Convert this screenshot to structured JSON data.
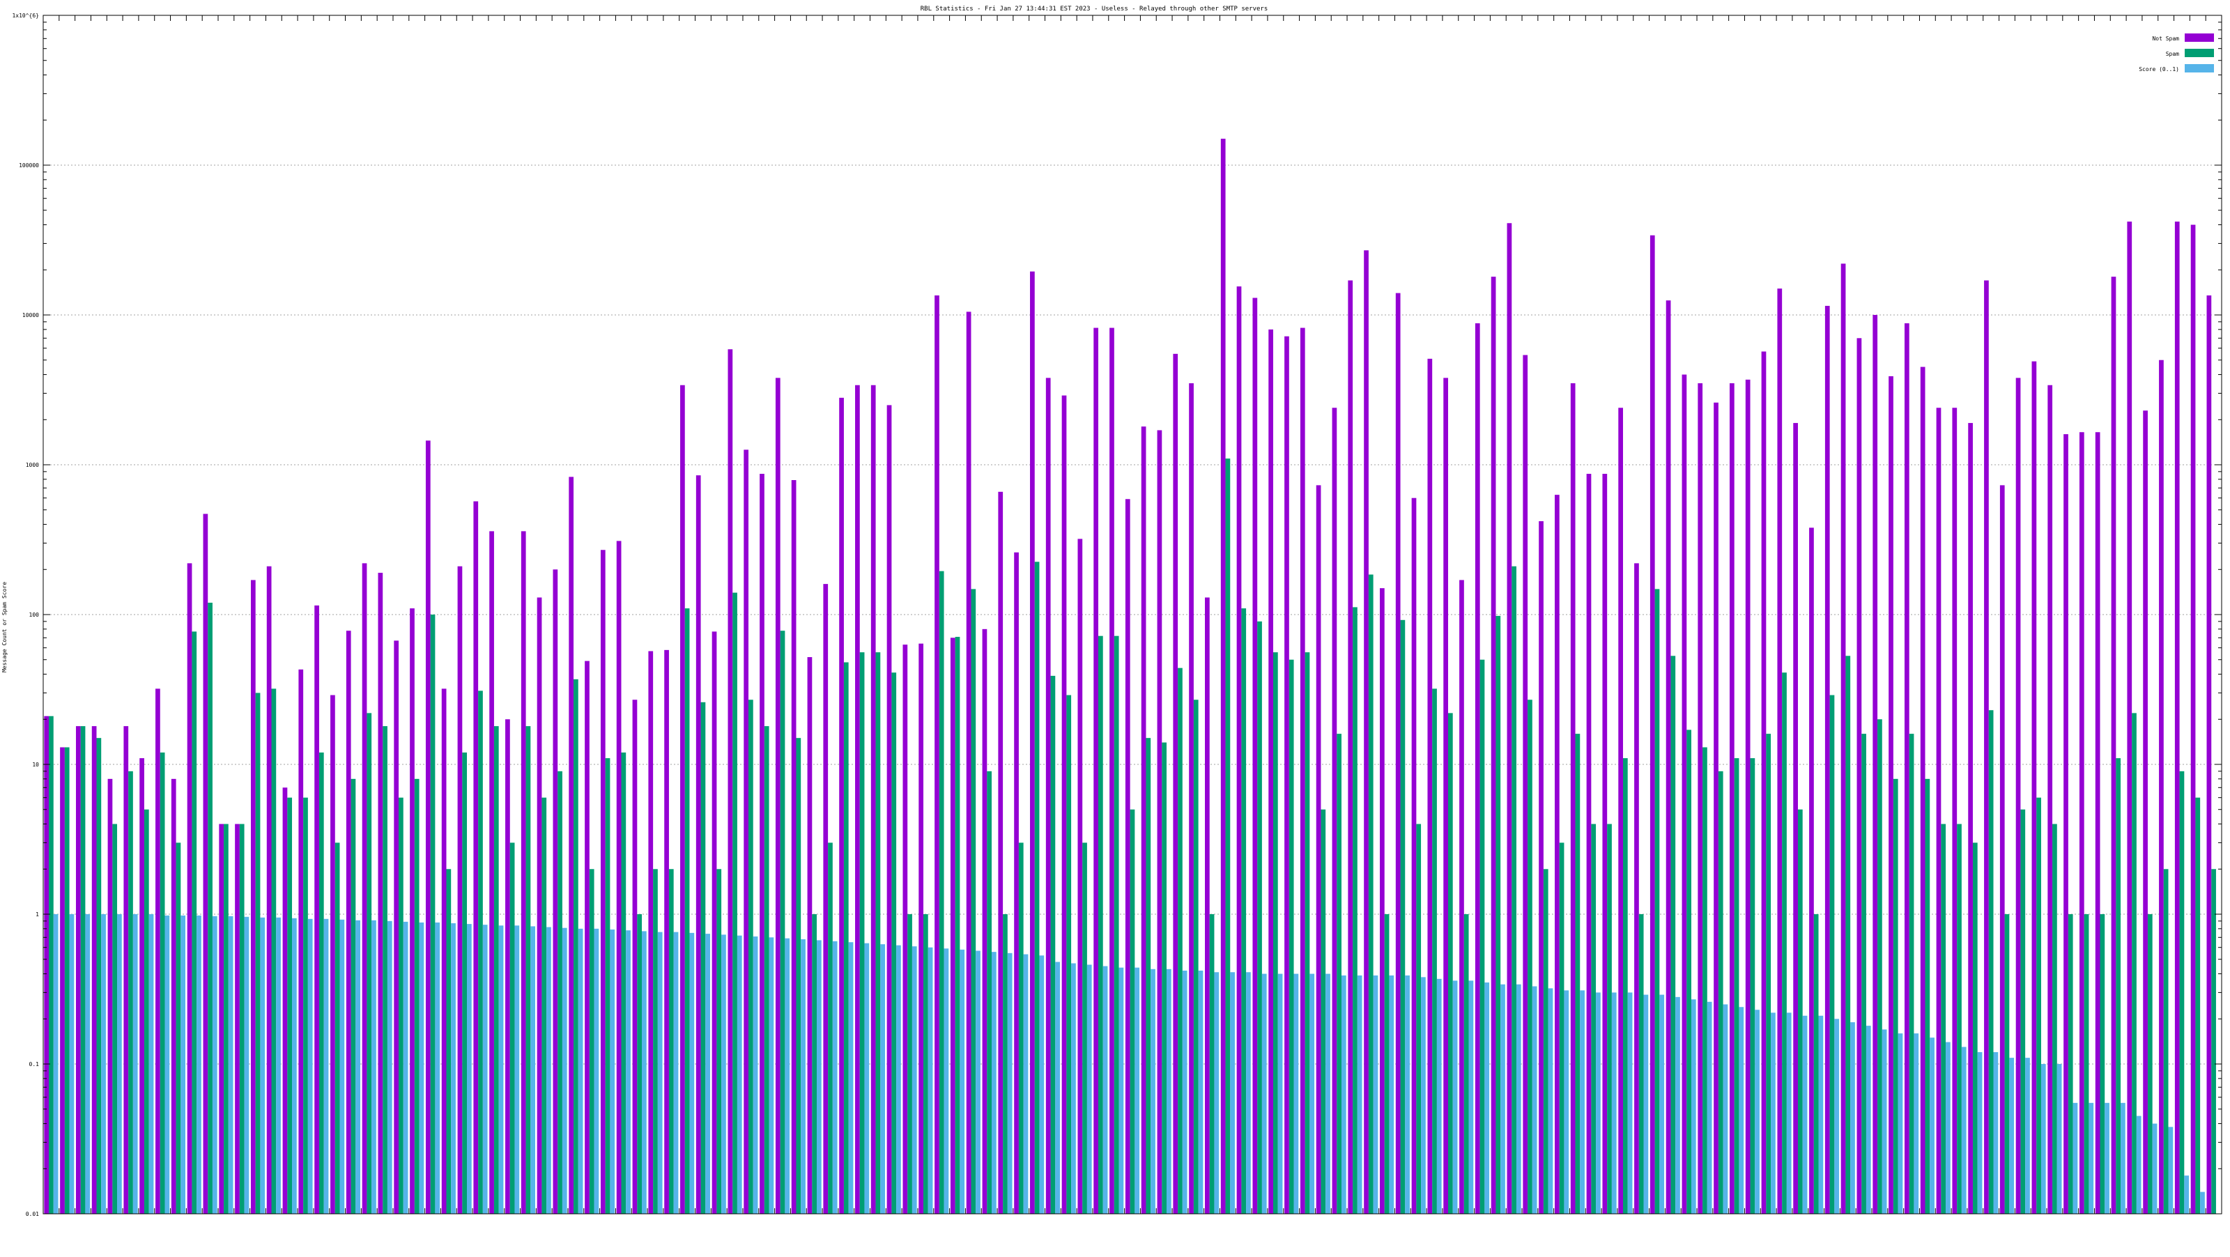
{
  "chart_data": {
    "type": "bar",
    "title": "RBL Statistics - Fri Jan 27 13:44:31 EST 2023 - Useless - Relayed through other SMTP servers",
    "ylabel": "Message Count or Spam Score",
    "xlabel": "",
    "yscale": "log",
    "ylim": [
      0.01,
      1000000
    ],
    "ytick_labels": [
      "0.01",
      "0.1",
      "1",
      "10",
      "100",
      "1000",
      "10000",
      "100000",
      "1x10^{6}"
    ],
    "grid": true,
    "legend_position": "top-right",
    "series": [
      {
        "name": "Not Spam",
        "color": "#9400d3",
        "values": [
          21,
          13,
          18,
          18,
          8,
          18,
          11,
          32,
          8,
          220,
          470,
          4,
          4,
          170,
          210,
          7,
          43,
          115,
          29,
          78,
          220,
          190,
          67,
          110,
          1450,
          32,
          210,
          570,
          360,
          20,
          360,
          130,
          200,
          830,
          49,
          270,
          310,
          27,
          57,
          58,
          3400,
          850,
          77,
          5900,
          1260,
          870,
          3800,
          790,
          52,
          160,
          2800,
          3400,
          3400,
          2500,
          63,
          64,
          13500,
          70,
          10500,
          80,
          660,
          260,
          19500,
          3800,
          2900,
          320,
          8200,
          8200,
          590,
          1800,
          1700,
          5500,
          3500,
          130,
          150000,
          15500,
          13000,
          8000,
          7200,
          8200,
          730,
          2400,
          17000,
          27000,
          150,
          14000,
          600,
          5100,
          3800,
          170,
          8800,
          18000,
          41000,
          5400,
          420,
          630,
          3500,
          870,
          870,
          2400,
          220,
          34000,
          12500,
          4000,
          3500,
          2600,
          3500,
          3700,
          5700,
          15000,
          1900,
          380,
          11500,
          22000,
          7000,
          10000,
          3900,
          8800,
          4500,
          2400,
          2400,
          1900,
          17000,
          730,
          3800,
          4900,
          3400,
          1600,
          1650,
          1650,
          18000,
          42000,
          2300,
          5000,
          42000,
          40000,
          13500
        ]
      },
      {
        "name": "Spam",
        "color": "#009e73",
        "values": [
          21,
          13,
          18,
          15,
          4,
          9,
          5,
          12,
          3,
          77,
          120,
          4,
          4,
          30,
          32,
          6,
          6,
          12,
          3,
          8,
          22,
          18,
          6,
          8,
          100,
          2,
          12,
          31,
          18,
          3,
          18,
          6,
          9,
          37,
          2,
          11,
          12,
          1,
          2,
          2,
          110,
          26,
          2,
          140,
          27,
          18,
          78,
          15,
          1,
          3,
          48,
          56,
          56,
          41,
          1,
          1,
          195,
          71,
          148,
          9,
          1,
          3,
          225,
          39,
          29,
          3,
          72,
          72,
          5,
          15,
          14,
          44,
          27,
          1,
          1100,
          110,
          90,
          56,
          50,
          56,
          5,
          16,
          112,
          185,
          1,
          92,
          4,
          32,
          22,
          1,
          50,
          98,
          210,
          27,
          2,
          3,
          16,
          4,
          4,
          11,
          1,
          148,
          53,
          17,
          13,
          9,
          11,
          11,
          16,
          41,
          5,
          1,
          29,
          53,
          16,
          20,
          8,
          16,
          8,
          4,
          4,
          3,
          23,
          1,
          5,
          6,
          4,
          1,
          1,
          1,
          11,
          22,
          1,
          2,
          9,
          6,
          2
        ]
      },
      {
        "name": "Score (0..1)",
        "color": "#56b4e9",
        "values": [
          1,
          1,
          1,
          1,
          1,
          1,
          1,
          0.98,
          0.98,
          0.98,
          0.97,
          0.97,
          0.96,
          0.95,
          0.95,
          0.94,
          0.93,
          0.93,
          0.92,
          0.91,
          0.91,
          0.9,
          0.89,
          0.88,
          0.88,
          0.87,
          0.86,
          0.85,
          0.84,
          0.84,
          0.83,
          0.82,
          0.81,
          0.8,
          0.8,
          0.79,
          0.78,
          0.77,
          0.76,
          0.76,
          0.75,
          0.74,
          0.73,
          0.72,
          0.71,
          0.7,
          0.69,
          0.68,
          0.67,
          0.66,
          0.65,
          0.64,
          0.63,
          0.62,
          0.61,
          0.6,
          0.59,
          0.58,
          0.57,
          0.56,
          0.55,
          0.54,
          0.53,
          0.48,
          0.47,
          0.46,
          0.45,
          0.44,
          0.44,
          0.43,
          0.43,
          0.42,
          0.42,
          0.41,
          0.41,
          0.41,
          0.4,
          0.4,
          0.4,
          0.4,
          0.4,
          0.39,
          0.39,
          0.39,
          0.39,
          0.39,
          0.38,
          0.37,
          0.36,
          0.36,
          0.35,
          0.34,
          0.34,
          0.33,
          0.32,
          0.31,
          0.31,
          0.3,
          0.3,
          0.3,
          0.29,
          0.29,
          0.28,
          0.27,
          0.26,
          0.25,
          0.24,
          0.23,
          0.22,
          0.22,
          0.21,
          0.21,
          0.2,
          0.19,
          0.18,
          0.17,
          0.16,
          0.16,
          0.15,
          0.14,
          0.13,
          0.12,
          0.12,
          0.11,
          0.11,
          0.1,
          0.1,
          0.055,
          0.055,
          0.055,
          0.055,
          0.045,
          0.04,
          0.038,
          0.018,
          0.014
        ]
      }
    ]
  }
}
